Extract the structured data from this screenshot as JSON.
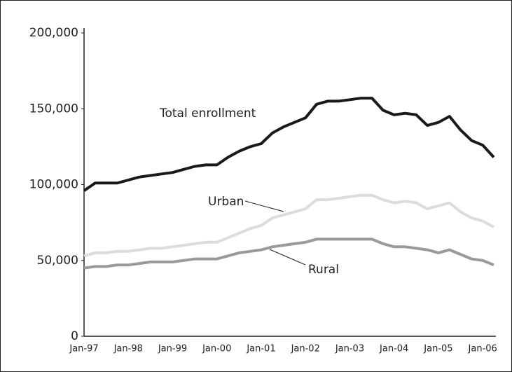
{
  "chart_data": {
    "type": "line",
    "categories": [
      "Jan-97",
      null,
      null,
      null,
      "Jan-98",
      null,
      null,
      null,
      "Jan-99",
      null,
      null,
      null,
      "Jan-00",
      null,
      null,
      null,
      "Jan-01",
      null,
      null,
      null,
      "Jan-02",
      null,
      null,
      null,
      "Jan-03",
      null,
      null,
      null,
      "Jan-04",
      null,
      null,
      null,
      "Jan-05",
      null,
      null,
      null,
      "Jan-06",
      null
    ],
    "series": [
      {
        "name": "Total enrollment",
        "color": "#1a1a1a",
        "values": [
          96000,
          101000,
          101000,
          101000,
          103000,
          105000,
          106000,
          107000,
          108000,
          110000,
          112000,
          113000,
          113000,
          118000,
          122000,
          125000,
          127000,
          134000,
          138000,
          141000,
          144000,
          153000,
          155000,
          155000,
          156000,
          157000,
          157000,
          149000,
          146000,
          147000,
          146000,
          139000,
          141000,
          145000,
          136000,
          129000,
          126000,
          118000
        ]
      },
      {
        "name": "Urban",
        "color": "#dcdcdc",
        "values": [
          53000,
          55000,
          55000,
          56000,
          56000,
          57000,
          58000,
          58000,
          59000,
          60000,
          61000,
          62000,
          62000,
          65000,
          68000,
          71000,
          73000,
          78000,
          80000,
          82000,
          84000,
          90000,
          90000,
          91000,
          92000,
          93000,
          93000,
          90000,
          88000,
          89000,
          88000,
          84000,
          86000,
          88000,
          82000,
          78000,
          76000,
          72000
        ]
      },
      {
        "name": "Rural",
        "color": "#9a9a9a",
        "values": [
          45000,
          46000,
          46000,
          47000,
          47000,
          48000,
          49000,
          49000,
          49000,
          50000,
          51000,
          51000,
          51000,
          53000,
          55000,
          56000,
          57000,
          59000,
          60000,
          61000,
          62000,
          64000,
          64000,
          64000,
          64000,
          64000,
          64000,
          61000,
          59000,
          59000,
          58000,
          57000,
          55000,
          57000,
          54000,
          51000,
          50000,
          47000
        ]
      }
    ],
    "ylim": [
      0,
      200000
    ],
    "yticks": [
      0,
      {
        "value": 50000,
        "label": "50,000"
      },
      {
        "value": 100000,
        "label": "100,000"
      },
      {
        "value": 150000,
        "label": "150,000"
      },
      {
        "value": 200000,
        "label": "200,000"
      }
    ]
  }
}
